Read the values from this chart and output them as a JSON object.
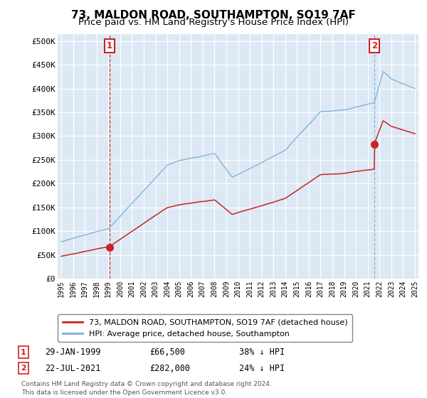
{
  "title": "73, MALDON ROAD, SOUTHAMPTON, SO19 7AF",
  "subtitle": "Price paid vs. HM Land Registry's House Price Index (HPI)",
  "title_fontsize": 11,
  "subtitle_fontsize": 9.5,
  "ylabel_ticks": [
    "£0",
    "£50K",
    "£100K",
    "£150K",
    "£200K",
    "£250K",
    "£300K",
    "£350K",
    "£400K",
    "£450K",
    "£500K"
  ],
  "ytick_values": [
    0,
    50000,
    100000,
    150000,
    200000,
    250000,
    300000,
    350000,
    400000,
    450000,
    500000
  ],
  "ylim": [
    0,
    515000
  ],
  "xlim_start": 1994.7,
  "xlim_end": 2025.3,
  "background_color": "#ffffff",
  "plot_background": "#dce9f5",
  "grid_color": "#ffffff",
  "hpi_color": "#7bafd4",
  "price_color": "#cc2222",
  "vline1_color": "#cc2222",
  "vline2_color": "#7bafd4",
  "marker1_date": 1999.08,
  "marker1_price": 66500,
  "marker1_label": "1",
  "marker2_date": 2021.55,
  "marker2_price": 282000,
  "marker2_label": "2",
  "legend_line1": "73, MALDON ROAD, SOUTHAMPTON, SO19 7AF (detached house)",
  "legend_line2": "HPI: Average price, detached house, Southampton",
  "footnote": "Contains HM Land Registry data © Crown copyright and database right 2024.\nThis data is licensed under the Open Government Licence v3.0.",
  "table_rows": [
    [
      "1",
      "29-JAN-1999",
      "£66,500",
      "38% ↓ HPI"
    ],
    [
      "2",
      "22-JUL-2021",
      "£282,000",
      "24% ↓ HPI"
    ]
  ]
}
